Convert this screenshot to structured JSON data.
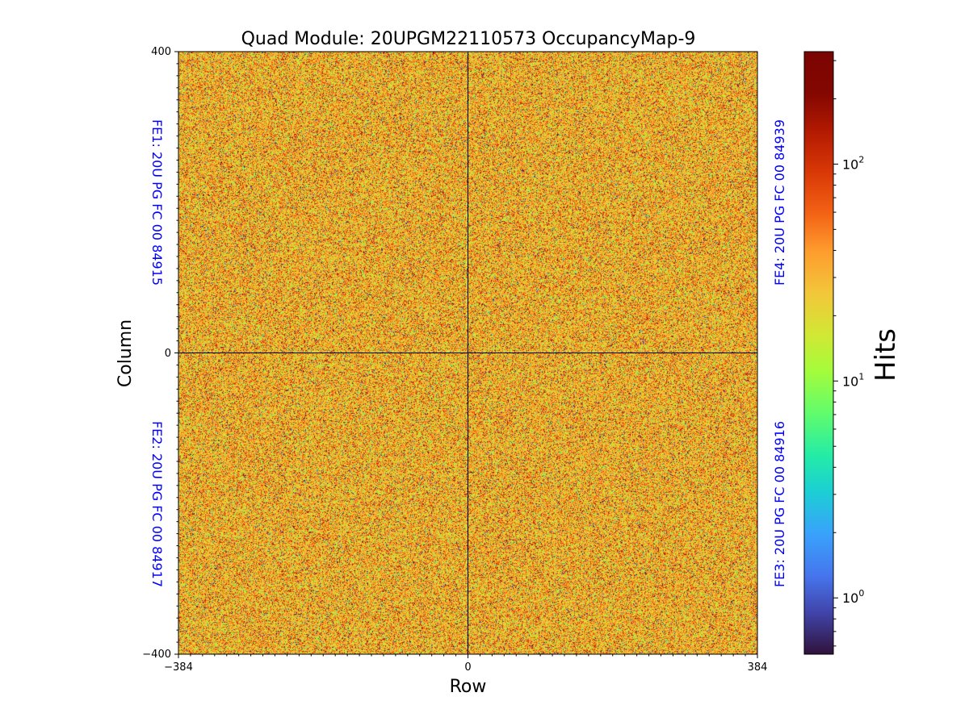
{
  "chart_data": {
    "type": "heatmap",
    "title": "Quad Module: 20UPGM22110573 OccupancyMap-9",
    "xlabel": "Row",
    "ylabel": "Column",
    "xlim": [
      -384,
      384
    ],
    "ylim": [
      -400,
      400
    ],
    "x_ticks": [
      "−384",
      "0",
      "384"
    ],
    "y_ticks": [
      "400",
      "0",
      "−400"
    ],
    "colorbar": {
      "label": "Hits",
      "scale": "log",
      "range": [
        0.55,
        330
      ],
      "colormap": "turbo",
      "ticks": [
        {
          "base": "10",
          "exp": "2",
          "value": 100
        },
        {
          "base": "10",
          "exp": "1",
          "value": 10
        },
        {
          "base": "10",
          "exp": "0",
          "value": 1
        }
      ]
    },
    "front_ends": [
      {
        "quadrant": "top-left",
        "label": "FE1: 20U PG FC 00 84915"
      },
      {
        "quadrant": "bottom-left",
        "label": "FE2: 20U PG FC 00 84917"
      },
      {
        "quadrant": "bottom-right",
        "label": "FE3: 20U PG FC 00 84916"
      },
      {
        "quadrant": "top-right",
        "label": "FE4: 20U PG FC 00 84939"
      }
    ],
    "typical_hits": 30,
    "distribution": "random per-pixel occupancy, mostly 20–100 hits with scattered low and high outliers"
  }
}
